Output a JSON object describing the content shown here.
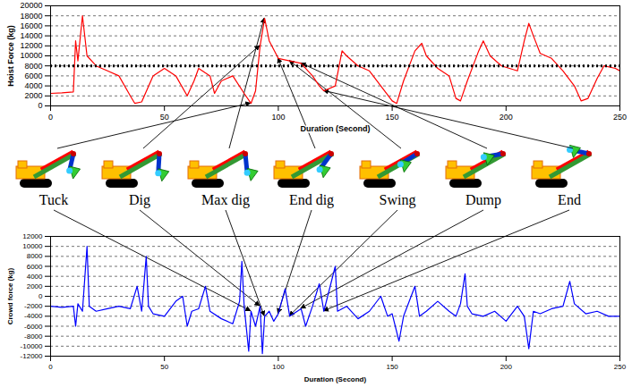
{
  "chart_data": [
    {
      "type": "line",
      "y_label": "Hoist Force (kg)",
      "x_label": "Duration (Second)",
      "color": "#ff0000",
      "grid": true,
      "xlim": [
        0,
        250
      ],
      "xticks": [
        0,
        50,
        100,
        150,
        200,
        250
      ],
      "ylim": [
        0,
        20000
      ],
      "yticks": [
        0,
        2000,
        4000,
        6000,
        8000,
        10000,
        12000,
        14000,
        16000,
        18000,
        20000
      ],
      "x": [
        0,
        5,
        10,
        11,
        12,
        14,
        16,
        20,
        25,
        30,
        35,
        37,
        40,
        45,
        50,
        55,
        60,
        63,
        65,
        70,
        72,
        75,
        80,
        85,
        88,
        90,
        92,
        94,
        96,
        100,
        105,
        110,
        115,
        118,
        120,
        125,
        128,
        130,
        135,
        140,
        145,
        150,
        152,
        155,
        160,
        163,
        165,
        170,
        175,
        178,
        180,
        183,
        188,
        190,
        193,
        198,
        205,
        208,
        210,
        212,
        215,
        220,
        225,
        230,
        233,
        236,
        240,
        243,
        248,
        250
      ],
      "values": [
        2500,
        2600,
        2800,
        13000,
        9000,
        18000,
        10000,
        8000,
        7000,
        6000,
        2000,
        500,
        800,
        6000,
        7500,
        6000,
        2000,
        5000,
        7500,
        6000,
        2500,
        5000,
        6000,
        2500,
        500,
        3000,
        12000,
        17500,
        13000,
        9500,
        9000,
        8500,
        6000,
        4000,
        3000,
        4000,
        11000,
        10000,
        8000,
        7000,
        4000,
        1000,
        500,
        5000,
        11000,
        12500,
        10000,
        7500,
        6000,
        1500,
        1000,
        5000,
        11000,
        13000,
        10000,
        8000,
        7000,
        13000,
        16500,
        14000,
        10500,
        9500,
        7000,
        4000,
        1000,
        1500,
        5500,
        8000,
        7500,
        7000
      ],
      "reference_line": {
        "value": 8000,
        "color": "#000000",
        "line_style": "dotted"
      }
    },
    {
      "type": "line",
      "y_label": "Crowd force (kg)",
      "x_label": "Duration (Second)",
      "color": "#0000ff",
      "grid": true,
      "xlim": [
        0,
        250
      ],
      "xticks": [
        0,
        50,
        100,
        150,
        200,
        250
      ],
      "ylim": [
        -12000,
        12000
      ],
      "yticks": [
        -12000,
        -10000,
        -8000,
        -6000,
        -4000,
        -2000,
        0,
        2000,
        4000,
        6000,
        8000,
        10000,
        12000
      ],
      "x": [
        0,
        5,
        10,
        11,
        12,
        14,
        16,
        17,
        20,
        25,
        30,
        35,
        38,
        40,
        42,
        43,
        45,
        50,
        55,
        58,
        60,
        62,
        65,
        68,
        70,
        75,
        80,
        83,
        84,
        85,
        87,
        88,
        90,
        92,
        93,
        94,
        96,
        98,
        100,
        103,
        105,
        110,
        112,
        115,
        118,
        120,
        125,
        126,
        130,
        135,
        140,
        145,
        148,
        150,
        153,
        155,
        160,
        162,
        165,
        170,
        175,
        178,
        180,
        182,
        183,
        185,
        190,
        195,
        200,
        205,
        208,
        210,
        212,
        215,
        220,
        225,
        228,
        230,
        235,
        240,
        245,
        250
      ],
      "values": [
        -2000,
        -2200,
        -2000,
        -6000,
        -1500,
        -3000,
        10000,
        -2000,
        -3000,
        -2500,
        -2000,
        -2500,
        2000,
        -3000,
        8000,
        -2000,
        -3500,
        -4000,
        -1000,
        0,
        -6000,
        -3000,
        -2500,
        2000,
        -3000,
        -4500,
        -5500,
        -1000,
        7000,
        -2000,
        -11000,
        -3000,
        -6000,
        -2000,
        -11500,
        -4000,
        -3000,
        -5000,
        -3500,
        1500,
        -4000,
        -2500,
        -6000,
        -2000,
        2500,
        -3000,
        6000,
        -3000,
        -2000,
        -4500,
        -3000,
        0,
        -4000,
        -3500,
        -9000,
        -4000,
        2000,
        -4000,
        -3000,
        -1000,
        -3000,
        -4000,
        -1500,
        4500,
        -2000,
        -3500,
        -4000,
        -3000,
        -5000,
        -2000,
        -4000,
        -10500,
        -3000,
        -3500,
        -2500,
        -2000,
        3000,
        -1500,
        -3500,
        -3000,
        -4000,
        -4000
      ]
    }
  ],
  "stages": [
    {
      "label": "Tuck",
      "time": 88
    },
    {
      "label": "Dig",
      "time": 92
    },
    {
      "label": "Max dig",
      "time": 94
    },
    {
      "label": "End dig",
      "time": 100
    },
    {
      "label": "Swing",
      "time": 105
    },
    {
      "label": "Dump",
      "time": 110
    },
    {
      "label": "End",
      "time": 120
    }
  ]
}
